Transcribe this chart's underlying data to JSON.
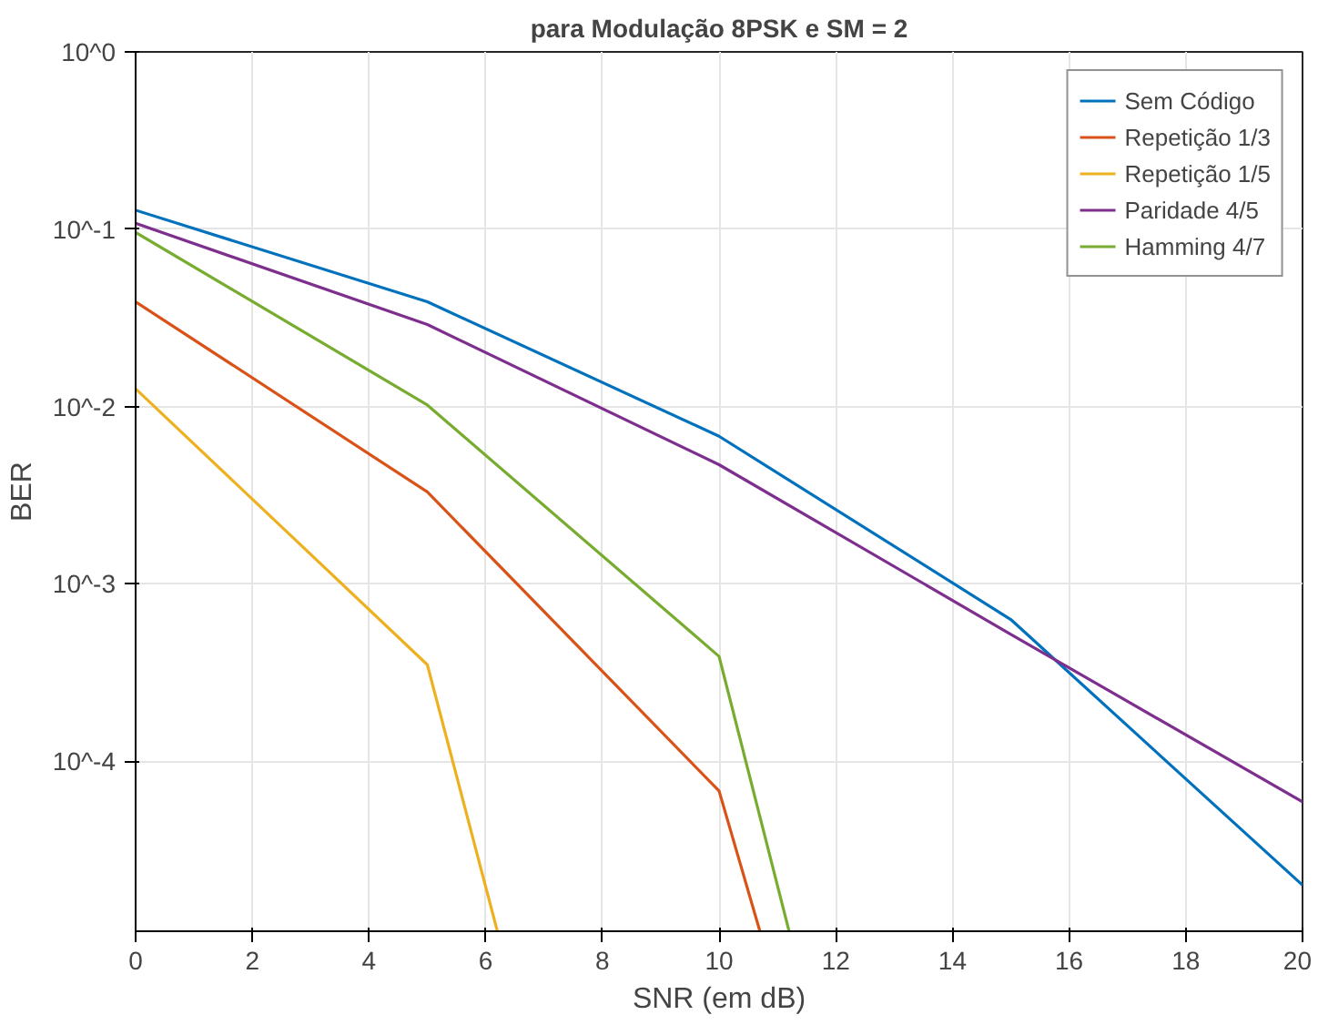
{
  "chart_data": {
    "type": "line",
    "title": "para Modulação 8PSK e SM = 2",
    "xlabel": "SNR (em dB)",
    "ylabel": "BER",
    "log": "y",
    "grid": true,
    "legend": "top right",
    "xlim": [
      0,
      20
    ],
    "xticks": [
      0,
      2,
      4,
      6,
      8,
      10,
      12,
      14,
      16,
      18,
      20
    ],
    "ylim": [
      1.1e-05,
      1
    ],
    "yticks": [
      {
        "value": 1,
        "label": "10^0"
      },
      {
        "value": 0.1,
        "label": "10^-1"
      },
      {
        "value": 0.01,
        "label": "10^-2"
      },
      {
        "value": 0.001,
        "label": "10^-3"
      },
      {
        "value": 0.0001,
        "label": "10^-4"
      }
    ],
    "series": [
      {
        "name": "Sem Código",
        "color": "#0072bd",
        "x": [
          0,
          5,
          10,
          15,
          20
        ],
        "values": [
          0.128,
          0.039,
          0.0068,
          0.00063,
          2e-05
        ]
      },
      {
        "name": "Repetição 1/3",
        "color": "#d95319",
        "x": [
          0,
          5,
          10,
          10.7
        ],
        "values": [
          0.039,
          0.0033,
          6.8e-05,
          1.1e-05
        ]
      },
      {
        "name": "Repetição 1/5",
        "color": "#edb120",
        "x": [
          0,
          5,
          6.2
        ],
        "values": [
          0.0126,
          0.00035,
          1.1e-05
        ]
      },
      {
        "name": "Paridade 4/5",
        "color": "#7e2f8e",
        "x": [
          0,
          5,
          10,
          15,
          20
        ],
        "values": [
          0.108,
          0.029,
          0.0047,
          0.00052,
          5.9e-05
        ]
      },
      {
        "name": "Hamming 4/7",
        "color": "#77ac30",
        "x": [
          0,
          5,
          10,
          11.2
        ],
        "values": [
          0.096,
          0.0102,
          0.00039,
          1.1e-05
        ]
      }
    ]
  }
}
